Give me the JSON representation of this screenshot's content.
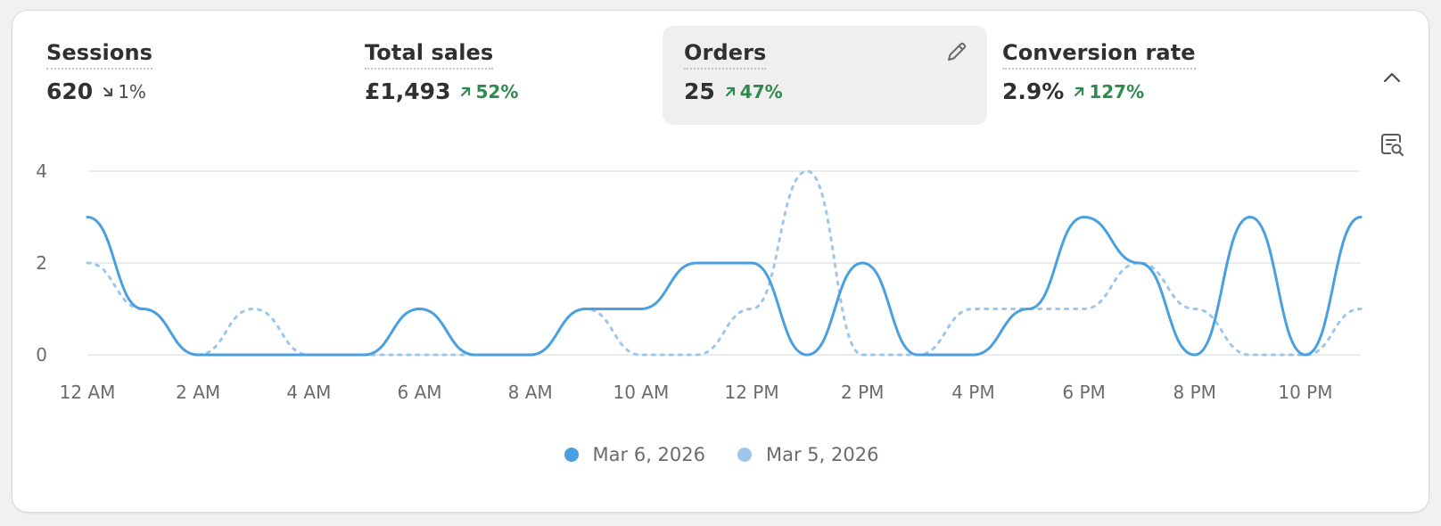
{
  "metrics": [
    {
      "label": "Sessions",
      "value": "620",
      "change": "1%",
      "direction": "down"
    },
    {
      "label": "Total sales",
      "value": "£1,493",
      "change": "52%",
      "direction": "up"
    },
    {
      "label": "Orders",
      "value": "25",
      "change": "47%",
      "direction": "up"
    },
    {
      "label": "Conversion rate",
      "value": "2.9%",
      "change": "127%",
      "direction": "up"
    }
  ],
  "selected_metric": "Orders",
  "icons": {
    "edit": "pencil-icon",
    "collapse": "chevron-up-icon",
    "inspect": "chart-search-icon"
  },
  "colors": {
    "current": "#4a9fe0",
    "previous": "#9dc7ea",
    "up": "#2f8a4e",
    "down": "#4a4a4a"
  },
  "chart_data": {
    "type": "line",
    "x_labels": [
      "12 AM",
      "2 AM",
      "4 AM",
      "6 AM",
      "8 AM",
      "10 AM",
      "12 PM",
      "2 PM",
      "4 PM",
      "6 PM",
      "8 PM",
      "10 PM"
    ],
    "x_hours": [
      0,
      1,
      2,
      3,
      4,
      5,
      6,
      7,
      8,
      9,
      10,
      11,
      12,
      13,
      14,
      15,
      16,
      17,
      18,
      19,
      20,
      21,
      22,
      23
    ],
    "ylim": [
      0,
      4
    ],
    "y_ticks": [
      0,
      2,
      4
    ],
    "grid": true,
    "legend_position": "bottom-center",
    "series": [
      {
        "name": "Mar 6, 2026",
        "style": "solid",
        "values": [
          3,
          1,
          0,
          0,
          0,
          0,
          1,
          0,
          0,
          1,
          1,
          2,
          2,
          0,
          2,
          0,
          0,
          1,
          3,
          2,
          0,
          3,
          0,
          3
        ]
      },
      {
        "name": "Mar 5, 2026",
        "style": "dotted",
        "values": [
          2,
          1,
          0,
          1,
          0,
          0,
          0,
          0,
          0,
          1,
          0,
          0,
          1,
          4,
          0,
          0,
          1,
          1,
          1,
          2,
          1,
          0,
          0,
          1
        ]
      }
    ]
  }
}
